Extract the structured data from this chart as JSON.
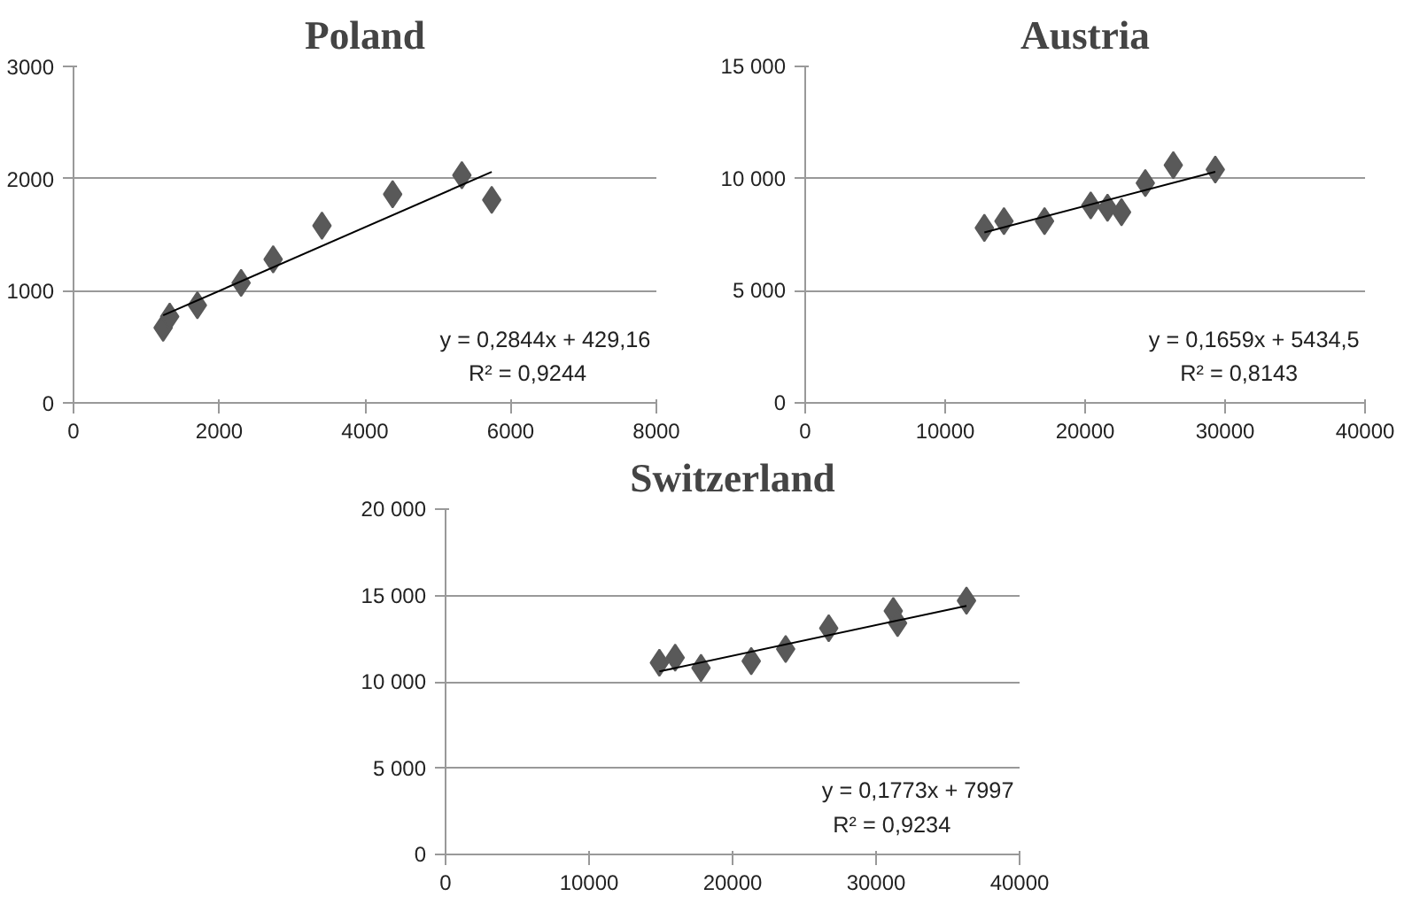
{
  "chart_data": [
    {
      "type": "scatter",
      "title": "Poland",
      "grid": "y",
      "xlim": [
        0,
        8000
      ],
      "ylim": [
        0,
        3000
      ],
      "xticks": [
        0,
        2000,
        4000,
        6000,
        8000
      ],
      "yticks": [
        0,
        1000,
        2000,
        3000
      ],
      "series": [
        {
          "color": "#595959",
          "marker": "diamond",
          "x": [
            1230,
            1320,
            1700,
            2300,
            2740,
            3410,
            4380,
            5330,
            5740
          ],
          "values": [
            670,
            770,
            870,
            1070,
            1280,
            1580,
            1860,
            2030,
            1810
          ]
        },
        {
          "type": "line",
          "marker": "none",
          "color": "#000000",
          "x": [
            1230,
            5740
          ],
          "values": [
            780,
            2060
          ]
        }
      ],
      "annotations": [
        "y = 0,2844x + 429,16",
        "R² = 0,9244"
      ]
    },
    {
      "type": "scatter",
      "title": "Austria",
      "grid": "y",
      "xlim": [
        0,
        40000
      ],
      "ylim": [
        0,
        15000
      ],
      "xticks": [
        0,
        10000,
        20000,
        30000,
        40000
      ],
      "yticks": [
        0,
        {
          "value": 5000,
          "label": "5 000"
        },
        {
          "value": 10000,
          "label": "10 000"
        },
        {
          "value": 15000,
          "label": "15 000"
        }
      ],
      "series": [
        {
          "color": "#595959",
          "marker": "diamond",
          "x": [
            12800,
            14200,
            17100,
            20400,
            21600,
            22600,
            24300,
            26300,
            29300
          ],
          "values": [
            7800,
            8100,
            8100,
            8800,
            8700,
            8500,
            9800,
            10600,
            10400
          ]
        },
        {
          "type": "line",
          "marker": "none",
          "color": "#000000",
          "x": [
            12800,
            29300
          ],
          "values": [
            7600,
            10300
          ]
        }
      ],
      "annotations": [
        "y = 0,1659x + 5434,5",
        "R² = 0,8143"
      ]
    },
    {
      "type": "scatter",
      "title": "Switzerland",
      "grid": "y",
      "xlim": [
        0,
        40000
      ],
      "ylim": [
        0,
        20000
      ],
      "xticks": [
        0,
        10000,
        20000,
        30000,
        40000
      ],
      "yticks": [
        0,
        {
          "value": 5000,
          "label": "5 000"
        },
        {
          "value": 10000,
          "label": "10 000"
        },
        {
          "value": 15000,
          "label": "15 000"
        },
        {
          "value": 20000,
          "label": "20 000"
        }
      ],
      "series": [
        {
          "color": "#595959",
          "marker": "diamond",
          "x": [
            14900,
            16000,
            17800,
            21300,
            23700,
            26700,
            31200,
            31500,
            36300
          ],
          "values": [
            11100,
            11400,
            10800,
            11200,
            11900,
            13100,
            14100,
            13400,
            14700
          ]
        },
        {
          "type": "line",
          "marker": "none",
          "color": "#000000",
          "x": [
            14900,
            36300
          ],
          "values": [
            10600,
            14400
          ]
        }
      ],
      "annotations": [
        "y = 0,1773x + 7997",
        "R² = 0,9234"
      ]
    }
  ]
}
